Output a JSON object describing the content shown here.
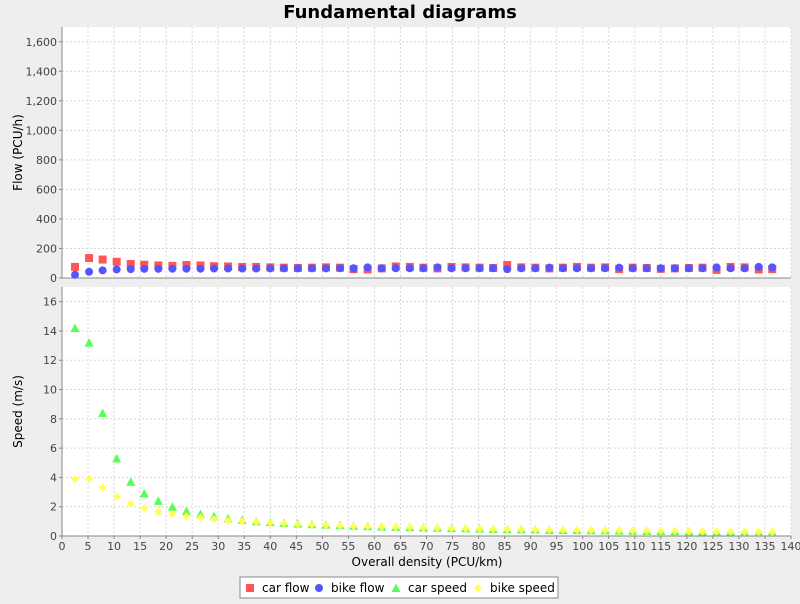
{
  "chart_data": {
    "type": "scatter",
    "title": "Fundamental diagrams",
    "x": [
      2.5,
      5.2,
      7.8,
      10.5,
      13.2,
      15.8,
      18.5,
      21.2,
      23.9,
      26.6,
      29.2,
      31.9,
      34.6,
      37.3,
      40.0,
      42.6,
      45.3,
      48.0,
      50.7,
      53.4,
      56.0,
      58.7,
      61.4,
      64.1,
      66.8,
      69.4,
      72.1,
      74.8,
      77.5,
      80.2,
      82.8,
      85.5,
      88.2,
      90.9,
      93.6,
      96.2,
      98.9,
      101.6,
      104.3,
      107.0,
      109.6,
      112.3,
      115.0,
      117.7,
      120.4,
      123.0,
      125.7,
      128.4,
      131.1,
      133.8,
      136.4
    ],
    "xlabel": "Overall density (PCU/km)",
    "xlim": [
      0,
      140
    ],
    "x_ticks": [
      "0",
      "5",
      "10",
      "15",
      "20",
      "25",
      "30",
      "35",
      "40",
      "45",
      "50",
      "55",
      "60",
      "65",
      "70",
      "75",
      "80",
      "85",
      "90",
      "95",
      "100",
      "105",
      "110",
      "115",
      "120",
      "125",
      "130",
      "135",
      "140"
    ],
    "grid": true,
    "legend_position": "bottom",
    "panels": [
      {
        "ylabel": "Flow (PCU/h)",
        "ylim": [
          0,
          1700
        ],
        "y_ticks": [
          "0",
          "200",
          "400",
          "600",
          "800",
          "1,000",
          "1,200",
          "1,400",
          "1,600"
        ],
        "series": [
          {
            "name": "car flow",
            "color": "#ff5555",
            "marker": "square",
            "values": [
              75,
              135,
              125,
              110,
              95,
              90,
              85,
              82,
              88,
              85,
              80,
              78,
              75,
              75,
              72,
              70,
              68,
              70,
              72,
              70,
              60,
              58,
              65,
              78,
              75,
              70,
              65,
              75,
              72,
              70,
              68,
              88,
              72,
              70,
              65,
              70,
              75,
              70,
              72,
              60,
              70,
              68,
              62,
              65,
              68,
              70,
              55,
              75,
              72,
              58,
              60
            ]
          },
          {
            "name": "bike flow",
            "color": "#5555ff",
            "marker": "circle",
            "values": [
              22,
              42,
              52,
              58,
              60,
              62,
              62,
              63,
              63,
              63,
              64,
              64,
              64,
              64,
              65,
              65,
              65,
              65,
              65,
              66,
              66,
              72,
              66,
              66,
              66,
              66,
              72,
              66,
              66,
              66,
              66,
              60,
              66,
              66,
              70,
              66,
              66,
              66,
              66,
              70,
              66,
              66,
              66,
              66,
              66,
              66,
              72,
              66,
              66,
              75,
              72
            ]
          }
        ]
      },
      {
        "ylabel": "Speed (m/s)",
        "ylim": [
          0,
          17
        ],
        "y_ticks": [
          "0",
          "2",
          "4",
          "6",
          "8",
          "10",
          "12",
          "14",
          "16"
        ],
        "series": [
          {
            "name": "car speed",
            "color": "#55ff55",
            "marker": "triangle",
            "values": [
              14.2,
              13.2,
              8.4,
              5.3,
              3.7,
              2.9,
              2.4,
              2.0,
              1.7,
              1.5,
              1.35,
              1.2,
              1.1,
              1.0,
              0.95,
              0.9,
              0.85,
              0.8,
              0.78,
              0.74,
              0.7,
              0.67,
              0.64,
              0.62,
              0.6,
              0.58,
              0.56,
              0.54,
              0.52,
              0.5,
              0.48,
              0.46,
              0.45,
              0.44,
              0.42,
              0.41,
              0.4,
              0.39,
              0.38,
              0.37,
              0.36,
              0.35,
              0.34,
              0.33,
              0.32,
              0.31,
              0.3,
              0.3,
              0.29,
              0.28,
              0.28
            ]
          },
          {
            "name": "bike speed",
            "color": "#ffff55",
            "marker": "diamond",
            "values": [
              3.9,
              3.9,
              3.3,
              2.7,
              2.2,
              1.9,
              1.65,
              1.5,
              1.35,
              1.25,
              1.15,
              1.05,
              1.0,
              0.95,
              0.9,
              0.85,
              0.8,
              0.77,
              0.74,
              0.7,
              0.67,
              0.65,
              0.62,
              0.6,
              0.58,
              0.56,
              0.54,
              0.52,
              0.5,
              0.48,
              0.47,
              0.46,
              0.44,
              0.43,
              0.42,
              0.41,
              0.4,
              0.39,
              0.38,
              0.37,
              0.36,
              0.35,
              0.34,
              0.33,
              0.32,
              0.31,
              0.3,
              0.3,
              0.29,
              0.28,
              0.28
            ]
          }
        ]
      }
    ]
  }
}
